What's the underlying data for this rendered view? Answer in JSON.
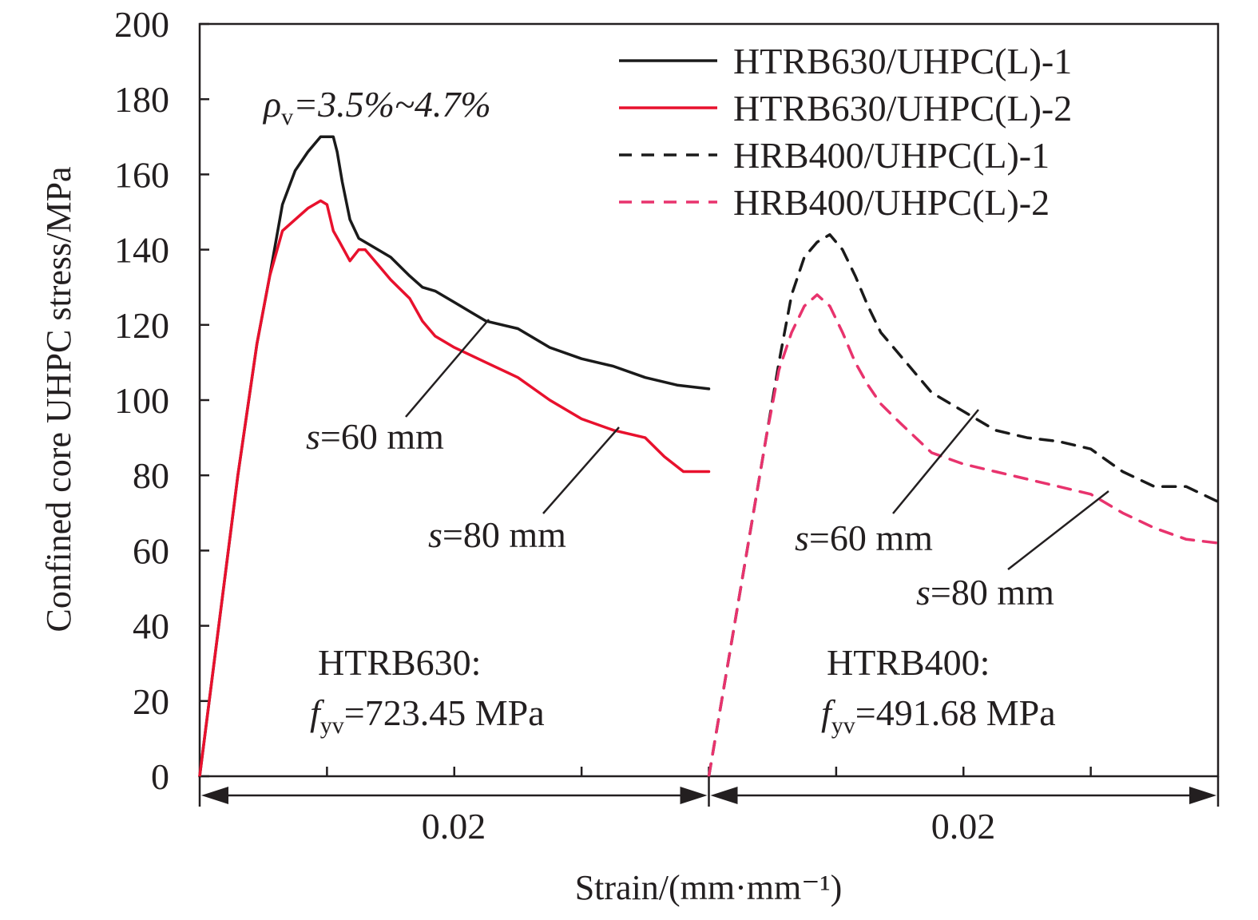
{
  "chart_data": {
    "type": "line",
    "title": "",
    "xlabel": "Strain/(mm·mm⁻¹)",
    "ylabel": "Confined core UHPC stress/MPa",
    "ylim": [
      0,
      200
    ],
    "yticks": [
      0,
      20,
      40,
      60,
      80,
      100,
      120,
      140,
      160,
      180,
      200
    ],
    "grid": false,
    "legend_position": "top-right",
    "panels": [
      {
        "xlim": [
          0,
          0.04
        ],
        "span_label": "0.02",
        "steel_label": "HTRB630:",
        "fyv_value": "=723.45 MPa",
        "spacing_labels": [
          "=60 mm",
          "=80 mm"
        ]
      },
      {
        "xlim": [
          0,
          0.04
        ],
        "span_label": "0.02",
        "steel_label": "HTRB400:",
        "fyv_value": "=491.68 MPa",
        "spacing_labels": [
          "=60 mm",
          "=80 mm"
        ]
      }
    ],
    "rho_annotation": {
      "symbol": "ρ",
      "subscript": "v",
      "value": "=3.5%~4.7%"
    },
    "fyv_symbol": {
      "symbol": "f",
      "subscript": "yv"
    },
    "s_symbol": "s",
    "series": [
      {
        "name": "HTRB630/UHPC(L)-1",
        "panel": 0,
        "color": "#1a1a1a",
        "dash": "solid",
        "x": [
          0,
          0.0015,
          0.003,
          0.0045,
          0.0055,
          0.0065,
          0.0075,
          0.0085,
          0.0095,
          0.0105,
          0.0108,
          0.0112,
          0.0118,
          0.0125,
          0.0135,
          0.015,
          0.0165,
          0.0175,
          0.0185,
          0.02,
          0.0215,
          0.0225,
          0.025,
          0.0275,
          0.03,
          0.0325,
          0.035,
          0.0375,
          0.04
        ],
        "y": [
          0,
          40,
          80,
          115,
          133,
          152,
          161,
          166,
          170,
          170,
          166,
          158,
          148,
          143,
          141,
          138,
          133,
          130,
          129,
          126,
          123,
          121,
          119,
          114,
          111,
          109,
          106,
          104,
          103
        ]
      },
      {
        "name": "HTRB630/UHPC(L)-2",
        "panel": 0,
        "color": "#e8112d",
        "dash": "solid",
        "x": [
          0,
          0.0015,
          0.003,
          0.0045,
          0.0055,
          0.0065,
          0.0075,
          0.0085,
          0.0095,
          0.01,
          0.0105,
          0.011,
          0.0118,
          0.0125,
          0.013,
          0.0135,
          0.015,
          0.0165,
          0.0175,
          0.0185,
          0.02,
          0.0225,
          0.025,
          0.0275,
          0.03,
          0.0325,
          0.035,
          0.0365,
          0.038,
          0.04
        ],
        "y": [
          0,
          40,
          80,
          115,
          133,
          145,
          148,
          151,
          153,
          152,
          145,
          142,
          137,
          140,
          140,
          138,
          132,
          127,
          121,
          117,
          114,
          110,
          106,
          100,
          95,
          92,
          90,
          85,
          81,
          81
        ]
      },
      {
        "name": "HRB400/UHPC(L)-1",
        "panel": 1,
        "color": "#1a1a1a",
        "dash": "dashed",
        "x": [
          0,
          0.0015,
          0.003,
          0.0045,
          0.0055,
          0.0065,
          0.0075,
          0.0085,
          0.0095,
          0.0105,
          0.0115,
          0.0125,
          0.0135,
          0.015,
          0.0175,
          0.02,
          0.0225,
          0.025,
          0.0275,
          0.03,
          0.0325,
          0.035,
          0.0375,
          0.04
        ],
        "y": [
          0,
          30,
          60,
          90,
          110,
          128,
          138,
          142,
          144,
          140,
          133,
          125,
          118,
          112,
          102,
          97,
          92,
          90,
          89,
          87,
          81,
          77,
          77,
          73
        ]
      },
      {
        "name": "HRB400/UHPC(L)-2",
        "panel": 1,
        "color": "#e8336d",
        "dash": "dashed",
        "x": [
          0,
          0.0015,
          0.003,
          0.0045,
          0.0055,
          0.0065,
          0.0075,
          0.0085,
          0.0095,
          0.0105,
          0.0115,
          0.0125,
          0.0135,
          0.015,
          0.0175,
          0.02,
          0.0225,
          0.025,
          0.0275,
          0.03,
          0.0325,
          0.035,
          0.0375,
          0.04
        ],
        "y": [
          0,
          30,
          60,
          90,
          108,
          118,
          125,
          128,
          125,
          118,
          110,
          104,
          99,
          94,
          86,
          83,
          81,
          79,
          77,
          75,
          70,
          66,
          63,
          62
        ]
      }
    ]
  }
}
